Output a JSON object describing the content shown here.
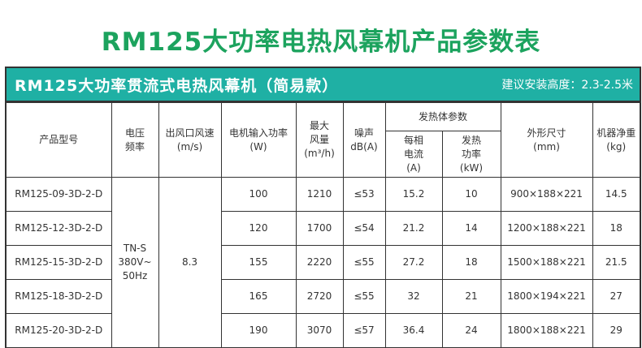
{
  "title": "RM125大功率电热风幕机产品参数表",
  "table_title": "RM125大功率贯流式电热风幕机（简易款）",
  "install_height": "建议安装高度：2.3-2.5米",
  "headers": {
    "model": "产品型号",
    "voltage": "电压\n频率",
    "speed": "出风口风速\n(m/s)",
    "power": "电机输入功率\n(W)",
    "airflow": "最大\n风量\n(m³/h)",
    "noise": "噪声\ndB(A)",
    "heater": "发热体参数",
    "current": "每相\n电流\n(A)",
    "heat_power": "发热\n功率\n(kW)",
    "size": "外形尺寸\n(mm)",
    "weight": "机器净重\n(kg)"
  },
  "shared": {
    "voltage": "TN-S\n380V~\n50Hz",
    "speed": "8.3"
  },
  "rows": [
    [
      "RM125-09-3D-2-D",
      "100",
      "1210",
      "≤53",
      "15.2",
      "10",
      "900×188×221",
      "14.5"
    ],
    [
      "RM125-12-3D-2-D",
      "120",
      "1700",
      "≤54",
      "21.2",
      "14",
      "1200×188×221",
      "18"
    ],
    [
      "RM125-15-3D-2-D",
      "155",
      "2220",
      "≤55",
      "27.2",
      "18",
      "1500×188×221",
      "21.5"
    ],
    [
      "RM125-18-3D-2-D",
      "165",
      "2720",
      "≤55",
      "32",
      "21",
      "1800×194×221",
      "27"
    ],
    [
      "RM125-20-3D-2-D",
      "190",
      "3070",
      "≤57",
      "36.4",
      "24",
      "1800×188×221",
      "29"
    ]
  ]
}
